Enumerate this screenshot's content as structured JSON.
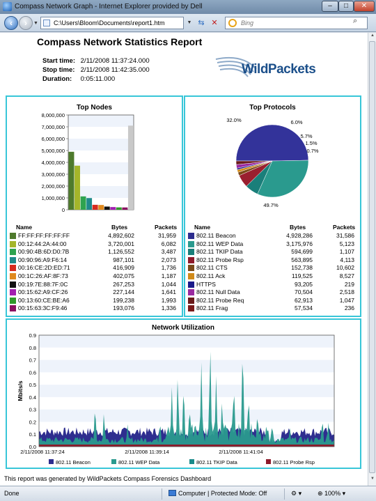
{
  "window": {
    "title": "Compass Network Graph - Internet Explorer provided by Dell",
    "minimize": "–",
    "maximize": "□",
    "close": "✕"
  },
  "toolbar": {
    "address": "C:\\Users\\Bloom\\Documents\\report1.htm",
    "search_placeholder": "Bing"
  },
  "report": {
    "title": "Compass Network Statistics Report",
    "start_label": "Start time:",
    "start_value": "2/11/2008 11:37:24.000",
    "stop_label": "Stop time:",
    "stop_value": "2/11/2008 11:42:35.000",
    "duration_label": "Duration:",
    "duration_value": "0:05:11.000",
    "logo_text": "WildPackets",
    "footer": "This report was generated by WildPackets Compass Forensics Dashboard"
  },
  "top_nodes": {
    "title": "Top Nodes",
    "headers": {
      "name": "Name",
      "bytes": "Bytes",
      "packets": "Packets"
    },
    "rows": [
      {
        "name": "FF:FF:FF:FF:FF:FF",
        "bytes": "4,892,602",
        "packets": "31,959",
        "color": "#4e7a2c"
      },
      {
        "name": "00:12:44:2A:44:00",
        "bytes": "3,720,001",
        "packets": "6,082",
        "color": "#a4b52a"
      },
      {
        "name": "00:90:4B:6D:D0:7B",
        "bytes": "1,126,552",
        "packets": "3,487",
        "color": "#2ea34f"
      },
      {
        "name": "00:90:96:A9:F6:14",
        "bytes": "987,101",
        "packets": "2,073",
        "color": "#1f8a8a"
      },
      {
        "name": "00:16:CE:2D:ED:71",
        "bytes": "416,909",
        "packets": "1,736",
        "color": "#d62b1f"
      },
      {
        "name": "00:1C:26:AF:8F:73",
        "bytes": "402,075",
        "packets": "1,187",
        "color": "#e08a1e"
      },
      {
        "name": "00:19:7E:88:7F:0C",
        "bytes": "267,253",
        "packets": "1,044",
        "color": "#111111"
      },
      {
        "name": "00:15:62:A9:CF:26",
        "bytes": "227,144",
        "packets": "1,641",
        "color": "#a21fb0"
      },
      {
        "name": "00:13:60:CE:BE:A6",
        "bytes": "199,238",
        "packets": "1,993",
        "color": "#2f9a2a"
      },
      {
        "name": "00:15:63:3C:F9:46",
        "bytes": "193,076",
        "packets": "1,336",
        "color": "#8a1060"
      }
    ]
  },
  "top_protocols": {
    "title": "Top Protocols",
    "headers": {
      "name": "Name",
      "bytes": "Bytes",
      "packets": "Packets"
    },
    "rows": [
      {
        "name": "802.11 Beacon",
        "bytes": "4,928,286",
        "packets": "31,586",
        "color": "#2e2e8f"
      },
      {
        "name": "802.11 WEP Data",
        "bytes": "3,175,976",
        "packets": "5,123",
        "color": "#2a9a8e"
      },
      {
        "name": "802.11 TKIP Data",
        "bytes": "594,699",
        "packets": "1,107",
        "color": "#1a7f7a"
      },
      {
        "name": "802.11 Probe Rsp",
        "bytes": "563,895",
        "packets": "4,113",
        "color": "#8e1a2a"
      },
      {
        "name": "802.11 CTS",
        "bytes": "152,738",
        "packets": "10,602",
        "color": "#7a4a1a"
      },
      {
        "name": "802.11 Ack",
        "bytes": "119,525",
        "packets": "8,527",
        "color": "#d08a1a"
      },
      {
        "name": "HTTPS",
        "bytes": "93,205",
        "packets": "219",
        "color": "#1a1a8a"
      },
      {
        "name": "802.11 Null Data",
        "bytes": "70,504",
        "packets": "2,518",
        "color": "#9a2aa0"
      },
      {
        "name": "802.11 Probe Req",
        "bytes": "62,913",
        "packets": "1,047",
        "color": "#6a1a1a"
      },
      {
        "name": "802.11 Frag",
        "bytes": "57,534",
        "packets": "236",
        "color": "#7a1a1a"
      }
    ]
  },
  "status": {
    "left": "Done",
    "zone": "Computer | Protected Mode: Off",
    "zoom": "100%"
  },
  "chart_data": [
    {
      "type": "bar",
      "title": "Top Nodes",
      "categories": [
        "FF:FF:FF:FF:FF:FF",
        "00:12:44:2A:44:00",
        "00:90:4B:6D:D0:7B",
        "00:90:96:A9:F6:14",
        "00:16:CE:2D:ED:71",
        "00:1C:26:AF:8F:73",
        "00:19:7E:88:7F:0C",
        "00:15:62:A9:CF:26",
        "00:13:60:CE:BE:A6",
        "00:15:63:3C:F9:46",
        ""
      ],
      "values": [
        4892602,
        3720001,
        1126552,
        987101,
        416909,
        402075,
        267253,
        227144,
        199238,
        193076,
        7100000
      ],
      "colors": [
        "#4e7a2c",
        "#a4b52a",
        "#2ea34f",
        "#1f8a8a",
        "#d62b1f",
        "#e08a1e",
        "#111111",
        "#a21fb0",
        "#2f9a2a",
        "#8a1060",
        "#c9c9c9"
      ],
      "ylim": [
        0,
        8000000
      ],
      "yticks": [
        "0",
        "1,000,000",
        "2,000,000",
        "3,000,000",
        "4,000,000",
        "5,000,000",
        "6,000,000",
        "7,000,000",
        "8,000,000"
      ]
    },
    {
      "type": "pie",
      "title": "Top Protocols",
      "slices": [
        {
          "label": "49.7%",
          "value": 49.7,
          "color": "#33339a"
        },
        {
          "label": "32.0%",
          "value": 32.0,
          "color": "#2a9a8e"
        },
        {
          "label": "6.0%",
          "value": 6.0,
          "color": "#1a7f7a"
        },
        {
          "label": "5.7%",
          "value": 5.7,
          "color": "#9a1f2f"
        },
        {
          "label": "1.5%",
          "value": 1.5,
          "color": "#7a4a1a"
        },
        {
          "label": "",
          "value": 1.2,
          "color": "#d08a1a"
        },
        {
          "label": "0.7%",
          "value": 0.7,
          "color": "#1a1a8a"
        },
        {
          "label": "",
          "value": 1.6,
          "color": "#9a2aa0"
        },
        {
          "label": "",
          "value": 1.6,
          "color": "#6a1a1a"
        }
      ]
    },
    {
      "type": "area",
      "title": "Network Utilization",
      "ylabel": "Mbits/s",
      "ylim": [
        0,
        0.9
      ],
      "yticks": [
        "0.0",
        "0.1",
        "0.2",
        "0.3",
        "0.4",
        "0.5",
        "0.6",
        "0.7",
        "0.8",
        "0.9"
      ],
      "xticks": [
        "2/11/2008 11:37:24",
        "2/11/2008 11:39:14",
        "2/11/2008 11:41:04"
      ],
      "series": [
        {
          "name": "802.11 Beacon",
          "color": "#2e2e8f"
        },
        {
          "name": "802.11 WEP Data",
          "color": "#2a9a8e"
        },
        {
          "name": "802.11 TKIP Data",
          "color": "#1a8a8a"
        },
        {
          "name": "802.11 Probe Rsp",
          "color": "#8e1a2a"
        }
      ],
      "beacon_level": 0.12,
      "wep_spikes": [
        {
          "t": 0.45,
          "v": 0.48
        },
        {
          "t": 0.47,
          "v": 0.62
        },
        {
          "t": 0.49,
          "v": 0.55
        },
        {
          "t": 0.51,
          "v": 0.35
        },
        {
          "t": 0.55,
          "v": 0.68
        },
        {
          "t": 0.58,
          "v": 0.88
        },
        {
          "t": 0.6,
          "v": 0.57
        },
        {
          "t": 0.62,
          "v": 0.4
        },
        {
          "t": 0.66,
          "v": 0.55
        },
        {
          "t": 0.69,
          "v": 0.9
        },
        {
          "t": 0.71,
          "v": 0.45
        },
        {
          "t": 0.74,
          "v": 0.3
        },
        {
          "t": 0.19,
          "v": 0.36
        },
        {
          "t": 0.22,
          "v": 0.3
        },
        {
          "t": 0.3,
          "v": 0.18
        },
        {
          "t": 0.41,
          "v": 0.22
        },
        {
          "t": 0.79,
          "v": 0.2
        },
        {
          "t": 0.85,
          "v": 0.15
        },
        {
          "t": 0.96,
          "v": 0.25
        },
        {
          "t": 0.98,
          "v": 0.22
        }
      ]
    }
  ]
}
